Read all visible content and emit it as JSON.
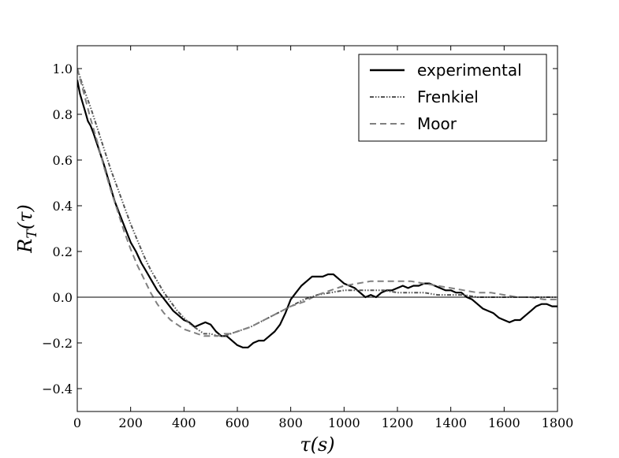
{
  "chart_data": {
    "type": "line",
    "xlabel": "τ(s)",
    "ylabel": "R_T(τ)",
    "xlim": [
      0,
      1800
    ],
    "ylim": [
      -0.5,
      1.1
    ],
    "xticks": [
      0,
      200,
      400,
      600,
      800,
      1000,
      1200,
      1400,
      1600,
      1800
    ],
    "yticks": [
      -0.4,
      -0.2,
      0.0,
      0.2,
      0.4,
      0.6,
      0.8,
      1.0
    ],
    "xtick_labels": [
      "0",
      "200",
      "400",
      "600",
      "800",
      "1000",
      "1200",
      "1400",
      "1600",
      "1800"
    ],
    "ytick_labels": [
      "−0.4",
      "−0.2",
      "0.0",
      "0.2",
      "0.4",
      "0.6",
      "0.8",
      "1.0"
    ],
    "zero_line": true,
    "grid": false,
    "legend_position": "top-right",
    "series": [
      {
        "name": "experimental",
        "color": "#000000",
        "dash": "solid",
        "x": [
          0,
          10,
          20,
          30,
          40,
          50,
          60,
          80,
          100,
          120,
          140,
          160,
          180,
          200,
          220,
          240,
          260,
          280,
          300,
          320,
          340,
          360,
          380,
          400,
          420,
          440,
          460,
          480,
          500,
          520,
          540,
          560,
          580,
          600,
          620,
          640,
          660,
          680,
          700,
          720,
          740,
          760,
          780,
          800,
          820,
          840,
          860,
          880,
          900,
          920,
          940,
          960,
          980,
          1000,
          1020,
          1040,
          1060,
          1080,
          1100,
          1120,
          1140,
          1160,
          1180,
          1200,
          1220,
          1240,
          1260,
          1280,
          1300,
          1320,
          1340,
          1360,
          1380,
          1400,
          1420,
          1440,
          1460,
          1480,
          1500,
          1520,
          1540,
          1560,
          1580,
          1600,
          1620,
          1640,
          1660,
          1680,
          1700,
          1720,
          1740,
          1760,
          1780,
          1800
        ],
        "values": [
          0.95,
          0.89,
          0.85,
          0.81,
          0.77,
          0.75,
          0.72,
          0.65,
          0.58,
          0.5,
          0.42,
          0.36,
          0.3,
          0.24,
          0.2,
          0.15,
          0.11,
          0.07,
          0.03,
          0.0,
          -0.03,
          -0.06,
          -0.08,
          -0.1,
          -0.11,
          -0.13,
          -0.12,
          -0.11,
          -0.12,
          -0.15,
          -0.17,
          -0.17,
          -0.19,
          -0.21,
          -0.22,
          -0.22,
          -0.2,
          -0.19,
          -0.19,
          -0.17,
          -0.15,
          -0.12,
          -0.07,
          -0.01,
          0.02,
          0.05,
          0.07,
          0.09,
          0.09,
          0.09,
          0.1,
          0.1,
          0.08,
          0.06,
          0.05,
          0.04,
          0.02,
          0.0,
          0.01,
          0.0,
          0.02,
          0.03,
          0.03,
          0.04,
          0.05,
          0.04,
          0.05,
          0.05,
          0.06,
          0.06,
          0.05,
          0.04,
          0.03,
          0.03,
          0.02,
          0.02,
          0.0,
          -0.01,
          -0.03,
          -0.05,
          -0.06,
          -0.07,
          -0.09,
          -0.1,
          -0.11,
          -0.1,
          -0.1,
          -0.08,
          -0.06,
          -0.04,
          -0.03,
          -0.03,
          -0.04,
          -0.04
        ]
      },
      {
        "name": "Frenkiel",
        "color": "#555555",
        "dash": "dash-dot-dot",
        "x": [
          0,
          25,
          50,
          75,
          100,
          125,
          150,
          175,
          200,
          225,
          250,
          275,
          300,
          325,
          350,
          375,
          400,
          425,
          450,
          475,
          500,
          525,
          550,
          575,
          600,
          650,
          700,
          750,
          800,
          850,
          900,
          950,
          1000,
          1050,
          1100,
          1150,
          1200,
          1250,
          1300,
          1350,
          1400,
          1450,
          1500,
          1550,
          1600,
          1650,
          1700,
          1750,
          1800
        ],
        "values": [
          1.0,
          0.91,
          0.83,
          0.74,
          0.65,
          0.56,
          0.48,
          0.4,
          0.32,
          0.25,
          0.18,
          0.12,
          0.07,
          0.02,
          -0.02,
          -0.06,
          -0.09,
          -0.12,
          -0.14,
          -0.16,
          -0.16,
          -0.17,
          -0.17,
          -0.16,
          -0.15,
          -0.13,
          -0.1,
          -0.07,
          -0.04,
          -0.01,
          0.01,
          0.02,
          0.03,
          0.03,
          0.03,
          0.03,
          0.02,
          0.02,
          0.02,
          0.01,
          0.01,
          0.01,
          0.0,
          0.0,
          0.0,
          0.0,
          0.0,
          0.0,
          0.0
        ]
      },
      {
        "name": "Moor",
        "color": "#808080",
        "dash": "dashed",
        "x": [
          0,
          25,
          50,
          75,
          100,
          125,
          150,
          175,
          200,
          225,
          250,
          275,
          300,
          325,
          350,
          375,
          400,
          425,
          450,
          475,
          500,
          525,
          550,
          575,
          600,
          650,
          700,
          750,
          800,
          850,
          900,
          950,
          1000,
          1050,
          1100,
          1150,
          1200,
          1250,
          1300,
          1350,
          1400,
          1450,
          1500,
          1550,
          1600,
          1650,
          1700,
          1750,
          1800
        ],
        "values": [
          1.0,
          0.89,
          0.78,
          0.68,
          0.57,
          0.47,
          0.38,
          0.29,
          0.21,
          0.14,
          0.08,
          0.02,
          -0.03,
          -0.07,
          -0.1,
          -0.12,
          -0.14,
          -0.15,
          -0.16,
          -0.17,
          -0.17,
          -0.17,
          -0.16,
          -0.16,
          -0.15,
          -0.13,
          -0.1,
          -0.07,
          -0.04,
          -0.02,
          0.01,
          0.03,
          0.05,
          0.06,
          0.07,
          0.07,
          0.07,
          0.07,
          0.06,
          0.05,
          0.04,
          0.03,
          0.02,
          0.02,
          0.01,
          0.0,
          0.0,
          -0.01,
          -0.01
        ]
      }
    ]
  }
}
